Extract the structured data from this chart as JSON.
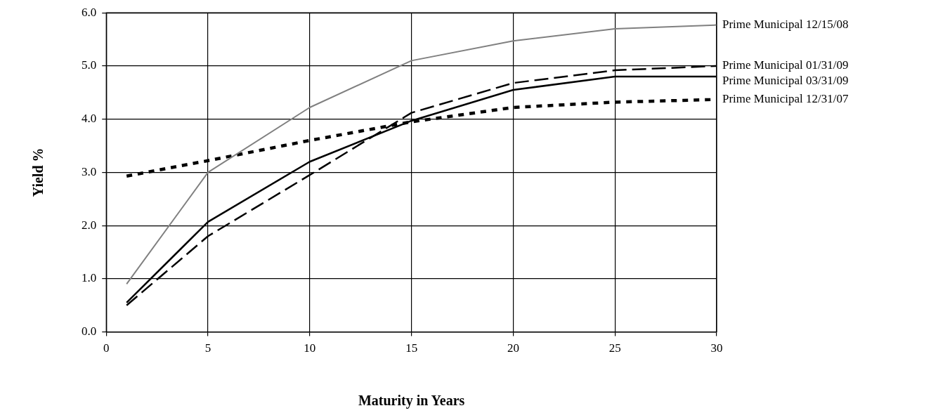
{
  "chart_data": {
    "type": "line",
    "xlabel": "Maturity in Years",
    "ylabel": "Yield %",
    "x": [
      1,
      5,
      10,
      15,
      20,
      25,
      30
    ],
    "series": [
      {
        "name": "Prime Municipal 12/15/08",
        "color": "#808080",
        "line_style": "solid",
        "values": [
          0.9,
          3.0,
          4.22,
          5.1,
          5.47,
          5.7,
          5.77
        ]
      },
      {
        "name": "Prime Municipal 01/31/09",
        "color": "#000000",
        "line_style": "dashed",
        "values": [
          0.5,
          1.8,
          2.95,
          4.12,
          4.68,
          4.92,
          5.0
        ]
      },
      {
        "name": "Prime Municipal 03/31/09",
        "color": "#000000",
        "line_style": "solid",
        "values": [
          0.55,
          2.07,
          3.2,
          3.97,
          4.55,
          4.8,
          4.8
        ]
      },
      {
        "name": "Prime Municipal 12/31/07",
        "color": "#000000",
        "line_style": "dotted",
        "values": [
          2.93,
          3.22,
          3.6,
          3.95,
          4.22,
          4.32,
          4.37
        ]
      }
    ],
    "xlim": [
      0,
      30
    ],
    "xticks": [
      0,
      5,
      10,
      15,
      20,
      25,
      30
    ],
    "ylim": [
      0,
      6
    ],
    "yticks": [
      {
        "value": 0,
        "label": "0.0"
      },
      {
        "value": 1,
        "label": "1.0"
      },
      {
        "value": 2,
        "label": "2.0"
      },
      {
        "value": 3,
        "label": "3.0"
      },
      {
        "value": 4,
        "label": "4.0"
      },
      {
        "value": 5,
        "label": "5.0"
      },
      {
        "value": 6,
        "label": "6.0"
      }
    ],
    "grid": true,
    "marker": "none"
  }
}
